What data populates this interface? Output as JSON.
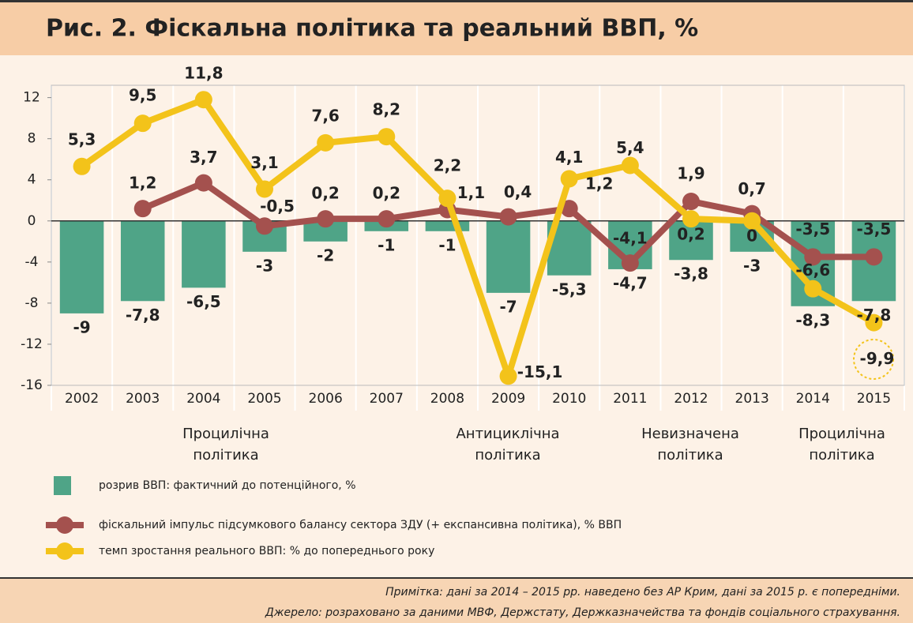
{
  "chart_data": {
    "type": "bar-line",
    "title": "Рис. 2. Фіскальна політика та реальний ВВП, %",
    "categories": [
      "2002",
      "2003",
      "2004",
      "2005",
      "2006",
      "2007",
      "2008",
      "2009",
      "2010",
      "2011",
      "2012",
      "2013",
      "2014",
      "2015"
    ],
    "series": [
      {
        "name": "розрив ВВП: фактичний до потенційного, %",
        "kind": "bar",
        "color": "#4fa487",
        "values": [
          -9,
          -7.8,
          -6.5,
          -3,
          -2,
          -1,
          -1,
          -7,
          -5.3,
          -4.7,
          -3.8,
          -3,
          -8.3,
          -7.8
        ],
        "value_labels": [
          "-9",
          "-7,8",
          "-6,5",
          "-3",
          "-2",
          "-1",
          "-1",
          "-7",
          "-5,3",
          "-4,7",
          "-3,8",
          "-3",
          "-8,3",
          "-7,8"
        ]
      },
      {
        "name": "фіскальний імпульс підсумкового балансу сектора ЗДУ (+ експансивна політика), % ВВП",
        "kind": "line",
        "color": "#a4514e",
        "values": [
          null,
          1.2,
          3.7,
          -0.5,
          0.2,
          0.2,
          1.1,
          0.4,
          1.2,
          -4.1,
          1.9,
          0.7,
          -3.5,
          -3.5
        ],
        "value_labels": [
          null,
          "1,2",
          "3,7",
          "-0,5",
          "0,2",
          "0,2",
          "1,1",
          "0,4",
          "1,2",
          "-4,1",
          "1,9",
          "0,7",
          "-3,5",
          "-3,5"
        ]
      },
      {
        "name": "темп зростання реального ВВП: % до попереднього року",
        "kind": "line",
        "color": "#f3c31a",
        "values": [
          5.3,
          9.5,
          11.8,
          3.1,
          7.6,
          8.2,
          2.2,
          -15.1,
          4.1,
          5.4,
          0.2,
          0,
          -6.6,
          -9.9
        ],
        "value_labels": [
          "5,3",
          "9,5",
          "11,8",
          "3,1",
          "7,6",
          "8,2",
          "2,2",
          "-15,1",
          "4,1",
          "5,4",
          "0,2",
          "0",
          "-6,6",
          "-9,9"
        ]
      }
    ],
    "ylim": [
      -16,
      13.2
    ],
    "yticks": [
      12,
      8,
      4,
      0,
      -4,
      -8,
      -12,
      -16
    ],
    "annotations": [
      [
        "Процилічна",
        "політика"
      ],
      [
        "Антициклічна",
        "політика"
      ],
      [
        "Невизначена",
        "політика"
      ],
      [
        "Процилічна",
        "політика"
      ]
    ],
    "notes": [
      "Примітка: дані за 2014 – 2015 рр. наведено без АР Крим, дані за 2015 р. є попередніми.",
      "Джерело: розраховано за даними МВФ, Держстату, Держказначейства та фондів соціального страхування."
    ]
  }
}
